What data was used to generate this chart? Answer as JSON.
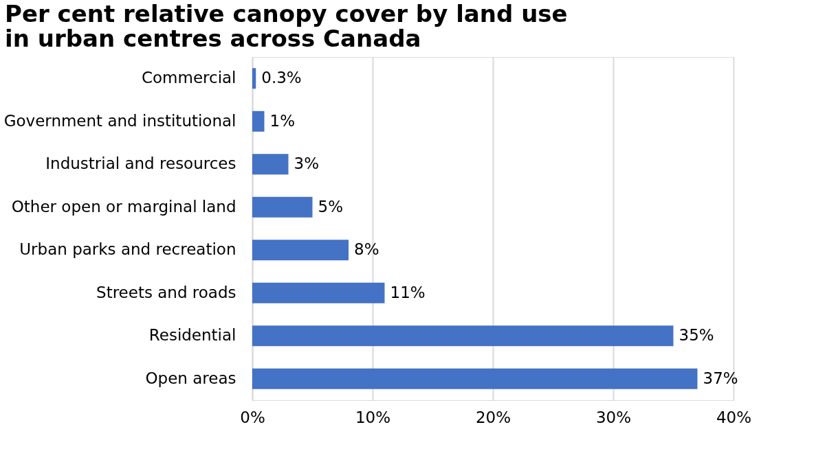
{
  "chart_data": {
    "type": "bar",
    "orientation": "horizontal",
    "title": "Per cent relative canopy cover by land use in urban centres across Canada",
    "categories": [
      "Commercial",
      "Government and institutional",
      "Industrial and resources",
      "Other open or marginal land",
      "Urban parks and recreation",
      "Streets and roads",
      "Residential",
      "Open areas"
    ],
    "values": [
      0.3,
      1,
      3,
      5,
      8,
      11,
      35,
      37
    ],
    "value_labels": [
      "0.3%",
      "1%",
      "3%",
      "5%",
      "8%",
      "11%",
      "35%",
      "37%"
    ],
    "color": "#4472c4",
    "xlim": [
      0,
      40
    ],
    "xticks": [
      {
        "value": 0,
        "label": "0%"
      },
      {
        "value": 10,
        "label": "10%"
      },
      {
        "value": 20,
        "label": "20%"
      },
      {
        "value": 30,
        "label": "30%"
      },
      {
        "value": 40,
        "label": "40%"
      }
    ],
    "grid": "x"
  }
}
